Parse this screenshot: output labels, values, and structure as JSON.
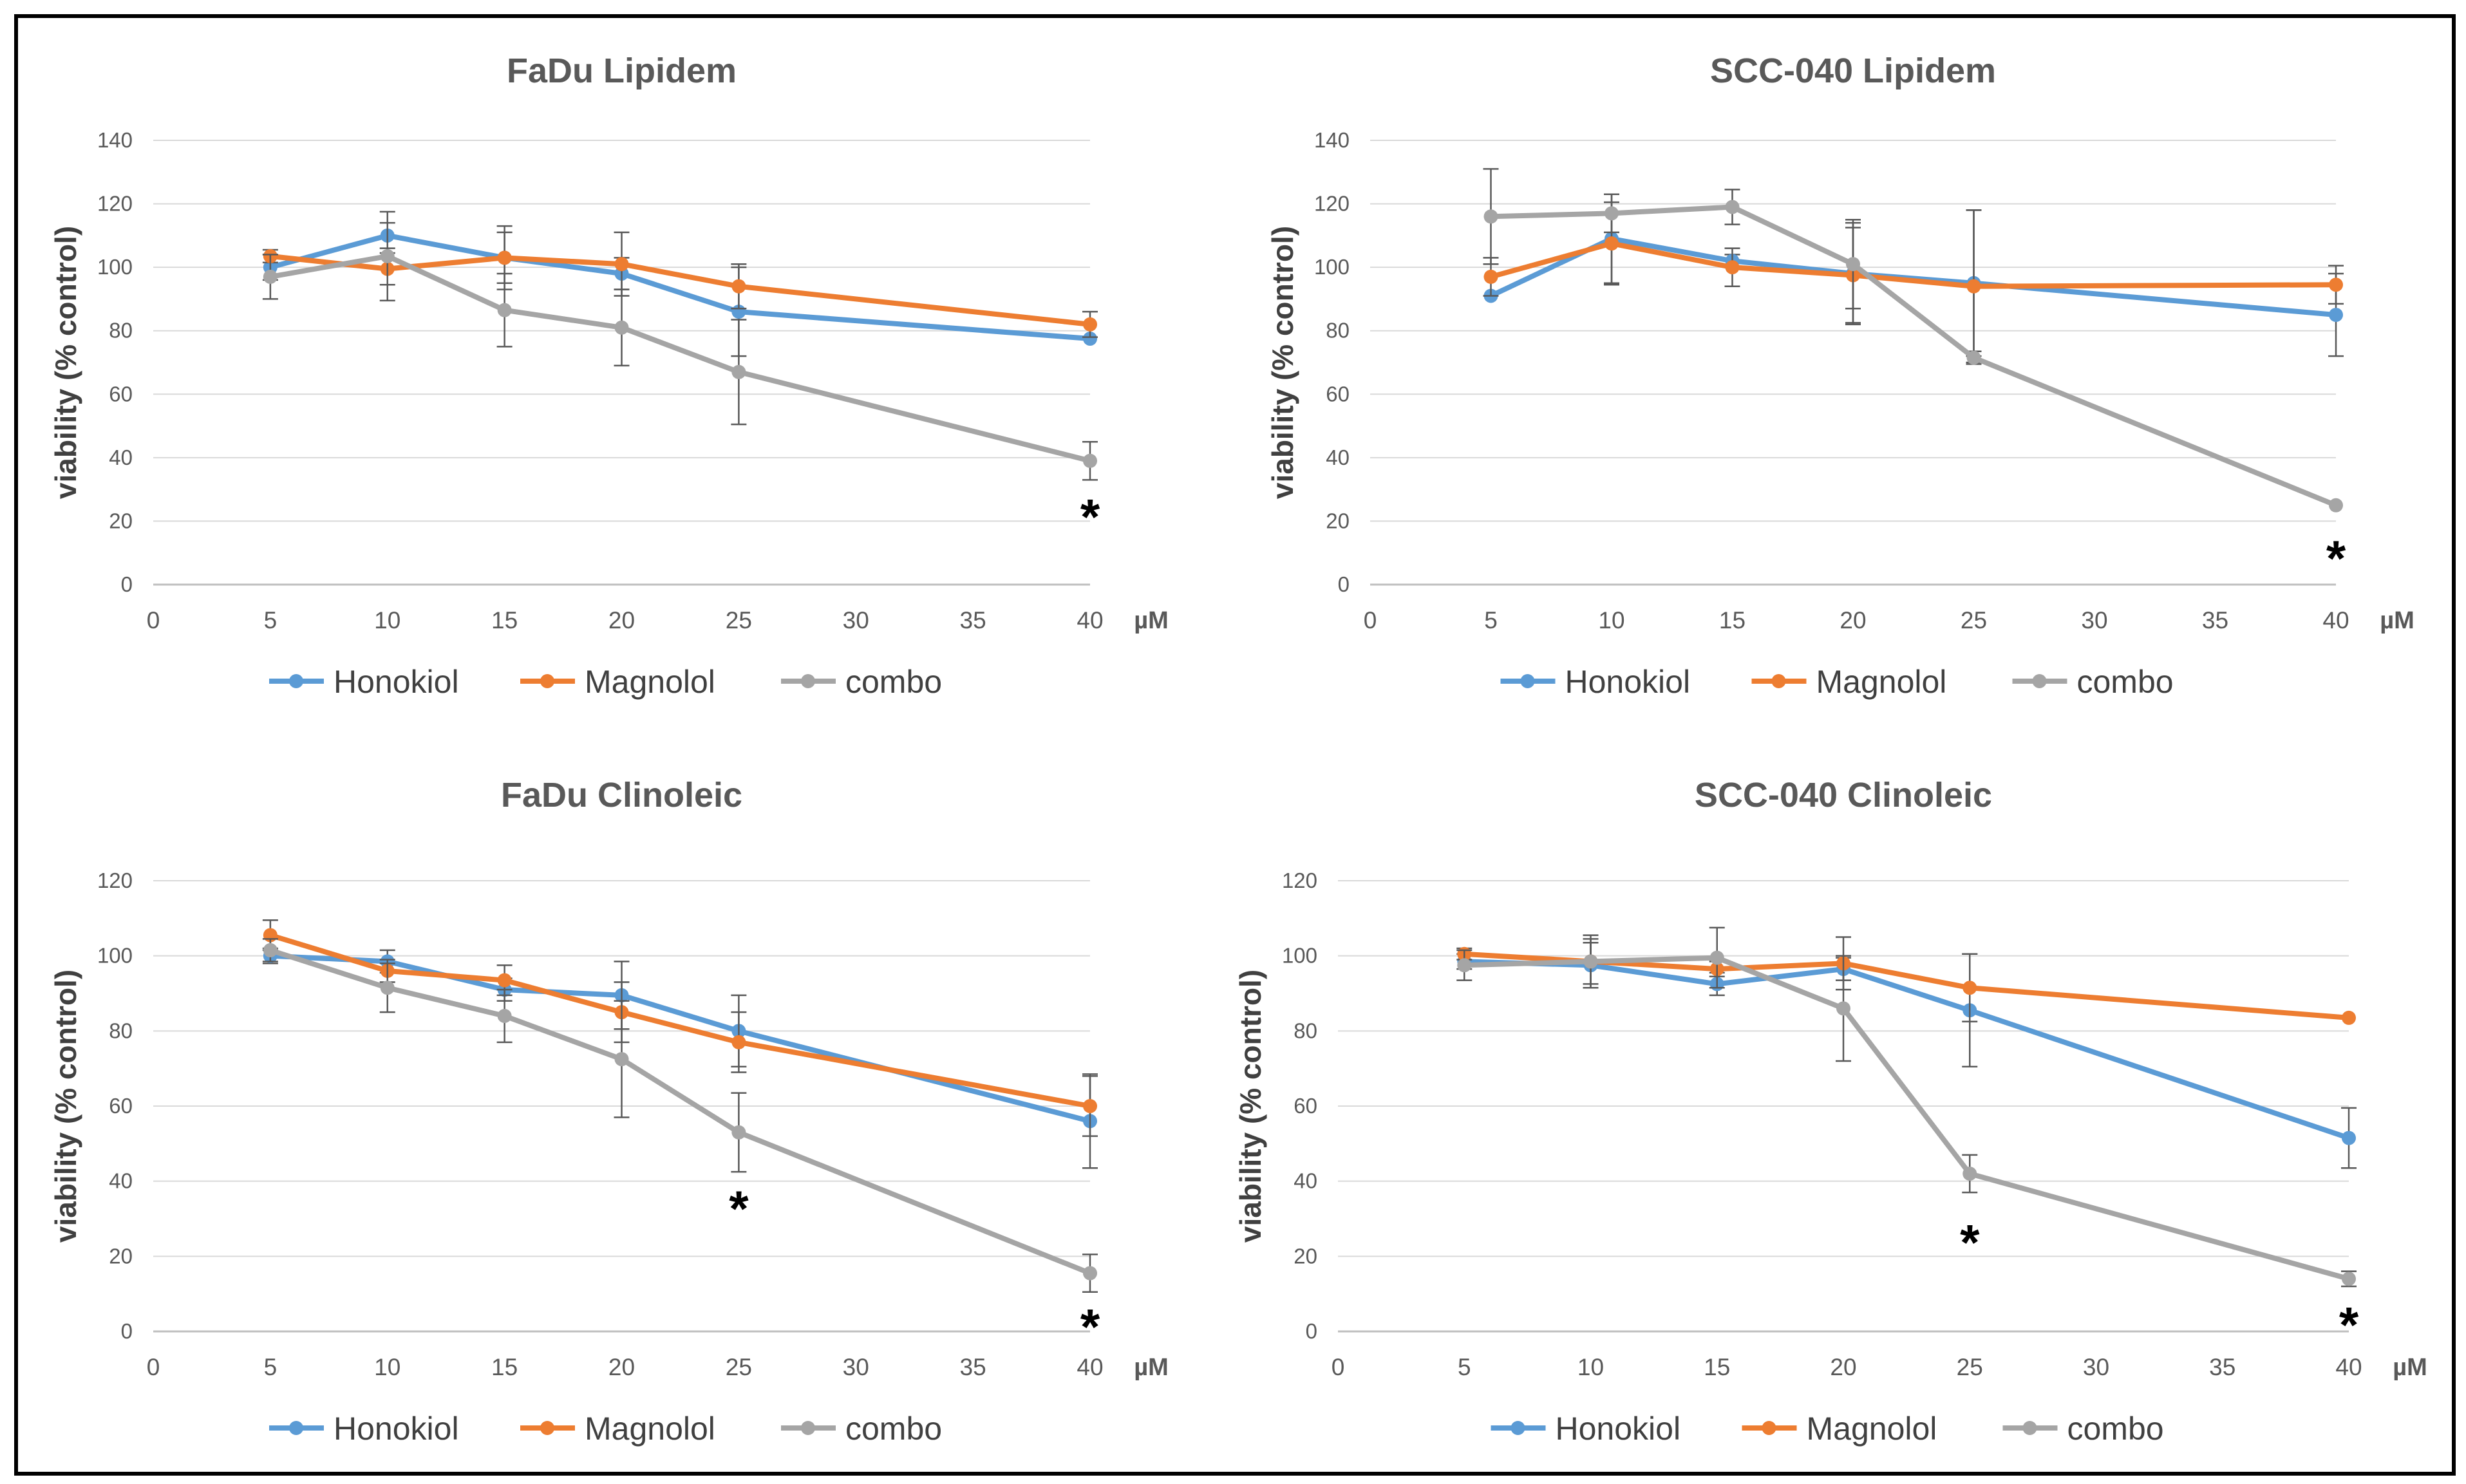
{
  "chart_data": [
    {
      "type": "line",
      "title": "FaDu Lipidem",
      "ylabel": "viability (% control)",
      "x_unit": "µM",
      "x": [
        5,
        10,
        15,
        20,
        25,
        40
      ],
      "xlim": [
        0,
        40
      ],
      "xticks": [
        0,
        5,
        10,
        15,
        20,
        25,
        30,
        35,
        40
      ],
      "ylim": [
        0,
        140
      ],
      "yticks": [
        0,
        20,
        40,
        60,
        80,
        100,
        120,
        140
      ],
      "grid": true,
      "legend_position": "bottom",
      "series": [
        {
          "name": "Honokiol",
          "color": "#5B9BD5",
          "values": [
            100,
            110,
            103,
            98,
            86,
            77.5
          ],
          "errors": [
            4,
            4,
            8,
            5,
            14,
            0
          ]
        },
        {
          "name": "Magnolol",
          "color": "#ED7D31",
          "values": [
            103.5,
            99.5,
            103,
            101,
            94,
            82
          ],
          "errors": [
            2,
            5,
            10,
            10,
            7,
            4
          ]
        },
        {
          "name": "combo",
          "color": "#A5A5A5",
          "values": [
            97,
            103.5,
            86.5,
            81,
            67,
            39
          ],
          "errors": [
            7,
            14,
            11.5,
            12,
            16.5,
            6
          ]
        }
      ],
      "annotations": [
        {
          "x": 40,
          "y": 24,
          "text": "*"
        }
      ]
    },
    {
      "type": "line",
      "title": "SCC-040 Lipidem",
      "ylabel": "viability (% control)",
      "x_unit": "µM",
      "x": [
        5,
        10,
        15,
        20,
        25,
        40
      ],
      "xlim": [
        0,
        40
      ],
      "xticks": [
        0,
        5,
        10,
        15,
        20,
        25,
        30,
        35,
        40
      ],
      "ylim": [
        0,
        140
      ],
      "yticks": [
        0,
        20,
        40,
        60,
        80,
        100,
        120,
        140
      ],
      "grid": true,
      "legend_position": "bottom",
      "series": [
        {
          "name": "Honokiol",
          "color": "#5B9BD5",
          "values": [
            91,
            109,
            102,
            98,
            95,
            85
          ],
          "errors": [
            0,
            14,
            2,
            16,
            23,
            13
          ]
        },
        {
          "name": "Magnolol",
          "color": "#ED7D31",
          "values": [
            97,
            107.5,
            100,
            97.5,
            94,
            94.5
          ],
          "errors": [
            6,
            13,
            6,
            15,
            24,
            6
          ]
        },
        {
          "name": "combo",
          "color": "#A5A5A5",
          "values": [
            116,
            117,
            119,
            101,
            71.5,
            25
          ],
          "errors": [
            15,
            6,
            5.5,
            14,
            2,
            0
          ]
        }
      ],
      "annotations": [
        {
          "x": 40,
          "y": 11,
          "text": "*"
        }
      ]
    },
    {
      "type": "line",
      "title": "FaDu Clinoleic",
      "ylabel": "viability (% control)",
      "x_unit": "µM",
      "x": [
        5,
        10,
        15,
        20,
        25,
        40
      ],
      "xlim": [
        0,
        40
      ],
      "xticks": [
        0,
        5,
        10,
        15,
        20,
        25,
        30,
        35,
        40
      ],
      "ylim": [
        0,
        120
      ],
      "yticks": [
        0,
        20,
        40,
        60,
        80,
        100,
        120
      ],
      "grid": true,
      "legend_position": "bottom",
      "series": [
        {
          "name": "Honokiol",
          "color": "#5B9BD5",
          "values": [
            100,
            98.5,
            91,
            89.5,
            80,
            56
          ],
          "errors": [
            2,
            3,
            3,
            9,
            9.5,
            12.5
          ]
        },
        {
          "name": "Magnolol",
          "color": "#ED7D31",
          "values": [
            105.5,
            96,
            93.5,
            85,
            77,
            60
          ],
          "errors": [
            4,
            3,
            4,
            8,
            8,
            8
          ]
        },
        {
          "name": "combo",
          "color": "#A5A5A5",
          "values": [
            101.5,
            91.5,
            84,
            72.5,
            53,
            15.5
          ],
          "errors": [
            3,
            6.5,
            7,
            15.5,
            10.5,
            5
          ]
        }
      ],
      "annotations": [
        {
          "x": 25,
          "y": 35,
          "text": "*"
        },
        {
          "x": 40,
          "y": 3.5,
          "text": "*"
        }
      ]
    },
    {
      "type": "line",
      "title": "SCC-040 Clinoleic",
      "ylabel": "viability (% control)",
      "x_unit": "µM",
      "x": [
        5,
        10,
        15,
        20,
        25,
        40
      ],
      "xlim": [
        0,
        40
      ],
      "xticks": [
        0,
        5,
        10,
        15,
        20,
        25,
        30,
        35,
        40
      ],
      "ylim": [
        0,
        120
      ],
      "yticks": [
        0,
        20,
        40,
        60,
        80,
        100,
        120
      ],
      "grid": true,
      "legend_position": "bottom",
      "series": [
        {
          "name": "Honokiol",
          "color": "#5B9BD5",
          "values": [
            98.5,
            97.5,
            92.5,
            96.5,
            85.5,
            51.5
          ],
          "errors": [
            2,
            6,
            3,
            3,
            15,
            8
          ]
        },
        {
          "name": "Magnolol",
          "color": "#ED7D31",
          "values": [
            100.5,
            98.5,
            96.5,
            98,
            91.5,
            83.5
          ],
          "errors": [
            1.5,
            6,
            2,
            7,
            9,
            0
          ]
        },
        {
          "name": "combo",
          "color": "#A5A5A5",
          "values": [
            97.5,
            98.5,
            99.5,
            86,
            42,
            14
          ],
          "errors": [
            4,
            7,
            8,
            14,
            5,
            2
          ]
        }
      ],
      "annotations": [
        {
          "x": 25,
          "y": 26,
          "text": "*"
        },
        {
          "x": 40,
          "y": 4,
          "text": "*"
        }
      ]
    }
  ]
}
